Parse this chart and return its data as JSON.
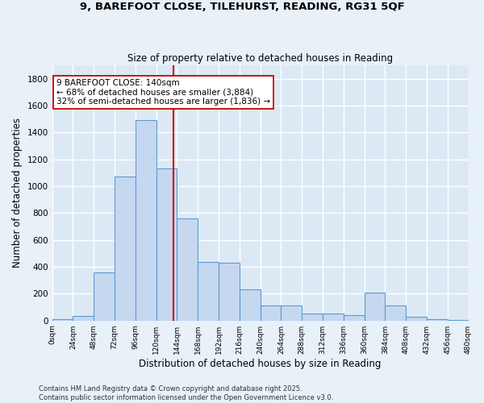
{
  "title_line1": "9, BAREFOOT CLOSE, TILEHURST, READING, RG31 5QF",
  "title_line2": "Size of property relative to detached houses in Reading",
  "xlabel": "Distribution of detached houses by size in Reading",
  "ylabel": "Number of detached properties",
  "bin_labels": [
    "0sqm",
    "24sqm",
    "48sqm",
    "72sqm",
    "96sqm",
    "120sqm",
    "144sqm",
    "168sqm",
    "192sqm",
    "216sqm",
    "240sqm",
    "264sqm",
    "288sqm",
    "312sqm",
    "336sqm",
    "360sqm",
    "384sqm",
    "408sqm",
    "432sqm",
    "456sqm",
    "480sqm"
  ],
  "bin_edges": [
    0,
    24,
    48,
    72,
    96,
    120,
    144,
    168,
    192,
    216,
    240,
    264,
    288,
    312,
    336,
    360,
    384,
    408,
    432,
    456,
    480
  ],
  "bar_heights": [
    10,
    35,
    360,
    1070,
    1490,
    1130,
    760,
    435,
    430,
    230,
    115,
    115,
    55,
    55,
    40,
    210,
    115,
    30,
    10,
    5,
    2
  ],
  "bar_color": "#c5d8f0",
  "bar_edge_color": "#5b9bd5",
  "property_size": 140,
  "vline_color": "#cc0000",
  "annotation_text": "9 BAREFOOT CLOSE: 140sqm\n← 68% of detached houses are smaller (3,884)\n32% of semi-detached houses are larger (1,836) →",
  "annotation_box_color": "#ffffff",
  "annotation_box_edge": "#cc0000",
  "ylim": [
    0,
    1900
  ],
  "yticks": [
    0,
    200,
    400,
    600,
    800,
    1000,
    1200,
    1400,
    1600,
    1800
  ],
  "bg_color": "#e8f0f8",
  "plot_bg_color": "#dce9f5",
  "grid_color": "#ffffff",
  "footnote": "Contains HM Land Registry data © Crown copyright and database right 2025.\nContains public sector information licensed under the Open Government Licence v3.0."
}
